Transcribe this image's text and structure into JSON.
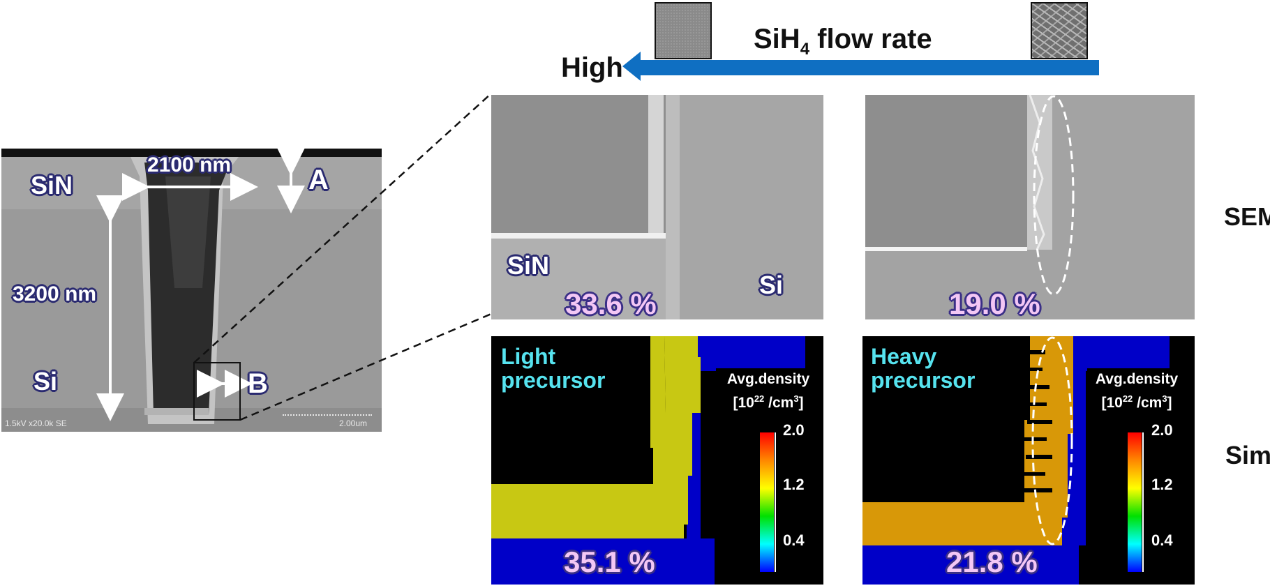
{
  "header": {
    "arrow_label_pre": "SiH",
    "arrow_label_sub": "4",
    "arrow_label_post": " flow rate",
    "high_label": "High",
    "arrow_color": "#0f6fc2"
  },
  "overview": {
    "width_label": "2100 nm",
    "depth_label": "3200 nm",
    "sin_label": "SiN",
    "si_label": "Si",
    "marker_a": "A",
    "marker_b": "B",
    "footer_left": "1.5kV x20.0k SE",
    "footer_right": "2.00um"
  },
  "rows": {
    "sem": "SEM",
    "sim": "Sim."
  },
  "sem_left": {
    "sin_label": "SiN",
    "si_label": "Si",
    "percent": "33.6 %"
  },
  "sem_right": {
    "percent": "19.0 %"
  },
  "sim_left": {
    "precursor_line1": "Light",
    "precursor_line2": "precursor",
    "percent": "35.1 %",
    "colorbar_title1": "Avg.density",
    "colorbar_title2_pre": "[10",
    "colorbar_title2_sup": "22",
    "colorbar_title2_mid": " /cm",
    "colorbar_title2_sup2": "3",
    "colorbar_title2_post": "]",
    "ticks": [
      "2.0",
      "1.2",
      "0.4"
    ]
  },
  "sim_right": {
    "precursor_line1": "Heavy",
    "precursor_line2": "precursor",
    "percent": "21.8 %",
    "colorbar_title1": "Avg.density",
    "colorbar_title2_pre": "[10",
    "colorbar_title2_sup": "22",
    "colorbar_title2_mid": " /cm",
    "colorbar_title2_sup2": "3",
    "colorbar_title2_post": "]",
    "ticks": [
      "2.0",
      "1.2",
      "0.4"
    ]
  },
  "colors": {
    "film_light": "#c8c813",
    "film_heavy": "#d89808",
    "substrate": "#0000c8"
  }
}
